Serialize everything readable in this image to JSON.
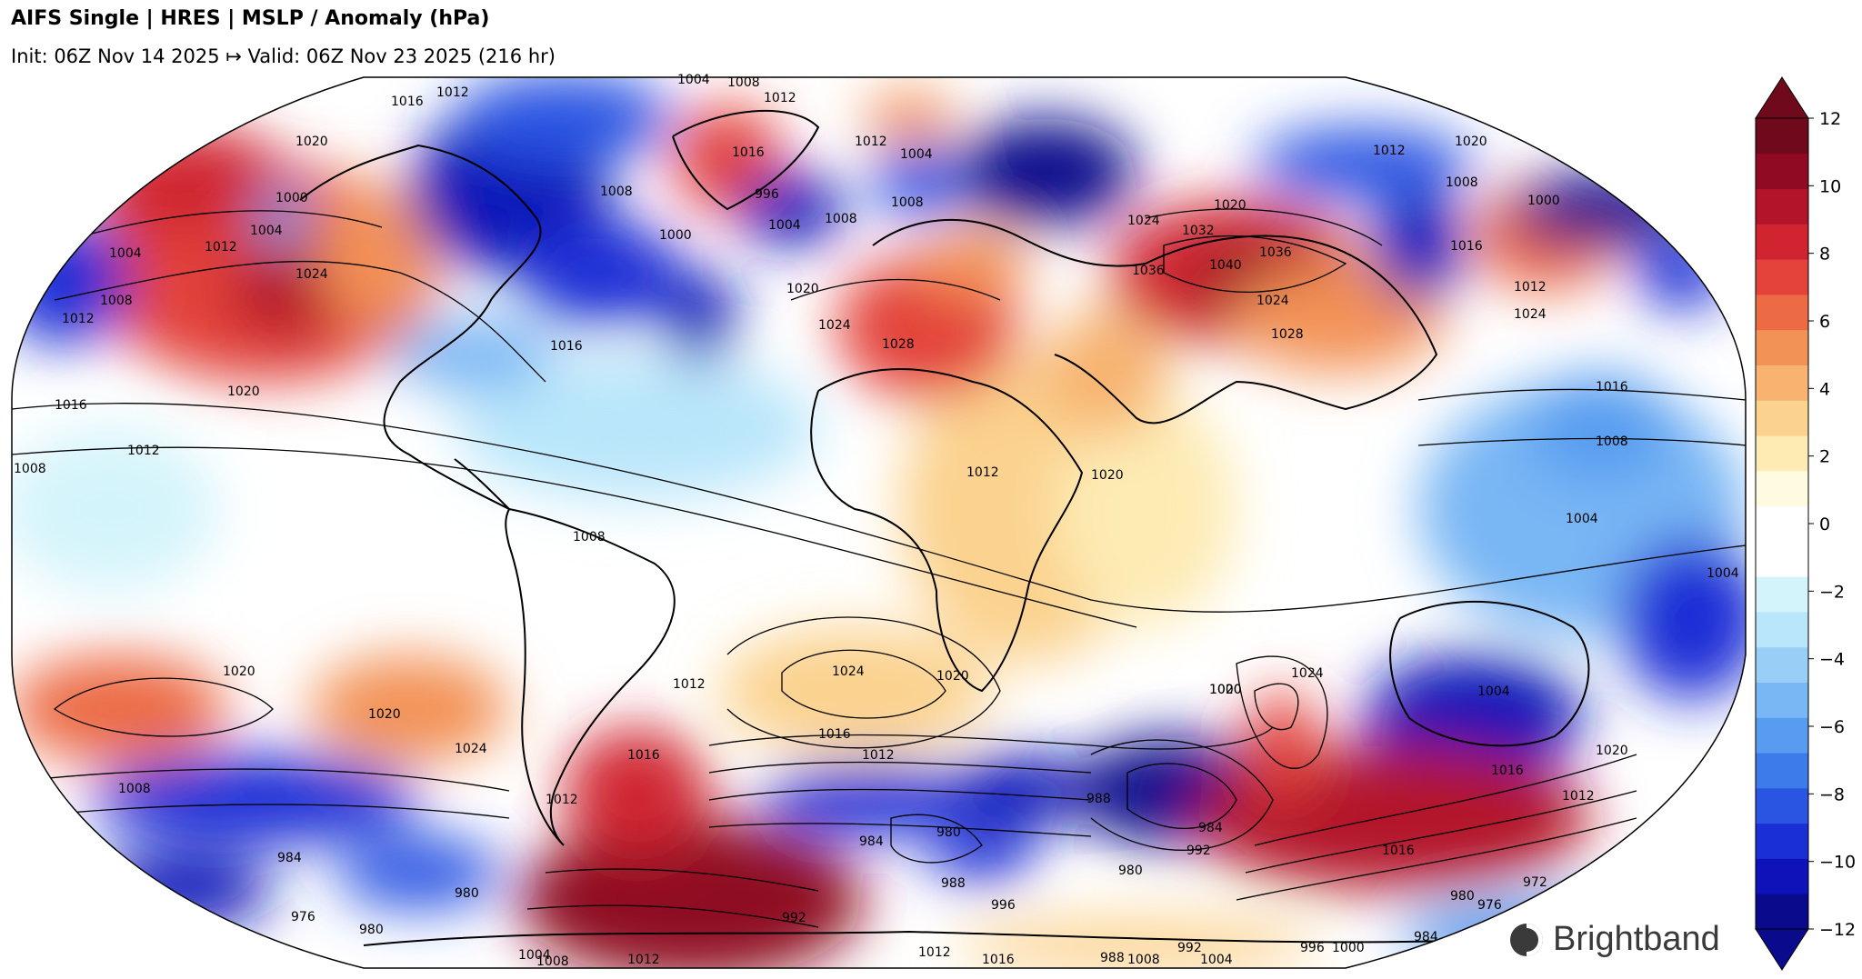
{
  "title": "AIFS Single | HRES | MSLP / Anomaly (hPa)",
  "subtitle": "Init: 06Z Nov 14 2025 ↦ Valid: 06Z Nov 23 2025 (216 hr)",
  "brand": {
    "name": "Brightband"
  },
  "colorbar": {
    "min": -12,
    "max": 12,
    "step": 1,
    "extend": "both",
    "tick_labels": [
      "12",
      "10",
      "8",
      "6",
      "4",
      "2",
      "0",
      "−2",
      "−4",
      "−6",
      "−8",
      "−10",
      "−12"
    ],
    "ticks": [
      12,
      10,
      8,
      6,
      4,
      2,
      0,
      -2,
      -4,
      -6,
      -8,
      -10,
      -12
    ],
    "colors": [
      "#0a0a8c",
      "#0f12b8",
      "#1a2fd6",
      "#2a55e3",
      "#3d7aea",
      "#579cf0",
      "#78b6f4",
      "#99cff7",
      "#b9e6fa",
      "#d4f4fb",
      "#ffffff",
      "#ffffff",
      "#fffbe0",
      "#fdebb4",
      "#fbd28e",
      "#f7b36f",
      "#f39256",
      "#ec6b45",
      "#e3433a",
      "#d02531",
      "#b3142a",
      "#8f0a22",
      "#6f0a1c"
    ],
    "under_color": "#0a0a8c",
    "over_color": "#6f0a1c"
  },
  "map_data": {
    "projection": "Robinson",
    "field": "MSLP anomaly (hPa)",
    "contour_labels": [
      {
        "text": "1004",
        "role": "arctic"
      },
      {
        "text": "1008",
        "role": "arctic"
      },
      {
        "text": "1012",
        "role": "arctic"
      },
      {
        "text": "1012",
        "role": "greenland"
      },
      {
        "text": "1016",
        "role": "alaska"
      },
      {
        "text": "1020",
        "role": "gulf-of-alaska"
      },
      {
        "text": "1000",
        "role": "gulf-of-alaska-low"
      },
      {
        "text": "1004",
        "role": "gulf-of-alaska-low"
      },
      {
        "text": "1012",
        "role": "ne-pacific"
      },
      {
        "text": "1024",
        "role": "ne-pacific-high"
      },
      {
        "text": "1004",
        "role": "nw-pacific"
      },
      {
        "text": "1008",
        "role": "nw-pacific"
      },
      {
        "text": "1012",
        "role": "nw-pacific"
      },
      {
        "text": "1016",
        "role": "e-pacific"
      },
      {
        "text": "1020",
        "role": "e-pacific"
      },
      {
        "text": "1012",
        "role": "tropical-pacific"
      },
      {
        "text": "1008",
        "role": "w-edge"
      },
      {
        "text": "1000",
        "role": "labrador"
      },
      {
        "text": "1008",
        "role": "hudson"
      },
      {
        "text": "1016",
        "role": "greenland"
      },
      {
        "text": "1012",
        "role": "greenland"
      },
      {
        "text": "996",
        "role": "iceland-low"
      },
      {
        "text": "1004",
        "role": "iceland-low"
      },
      {
        "text": "1004",
        "role": "norway"
      },
      {
        "text": "1008",
        "role": "north-atlantic"
      },
      {
        "text": "1008",
        "role": "north-sea"
      },
      {
        "text": "1016",
        "role": "atlantic"
      },
      {
        "text": "1020",
        "role": "azores"
      },
      {
        "text": "1024",
        "role": "iberia"
      },
      {
        "text": "1028",
        "role": "sahara"
      },
      {
        "text": "1024",
        "role": "russia"
      },
      {
        "text": "1032",
        "role": "siberia"
      },
      {
        "text": "1036",
        "role": "siberia"
      },
      {
        "text": "1040",
        "role": "mongolia"
      },
      {
        "text": "1036",
        "role": "mongolia"
      },
      {
        "text": "1024",
        "role": "tibet"
      },
      {
        "text": "1028",
        "role": "tibet"
      },
      {
        "text": "1020",
        "role": "far-east"
      },
      {
        "text": "1016",
        "role": "far-east"
      },
      {
        "text": "1012",
        "role": "kamchatka"
      },
      {
        "text": "1008",
        "role": "bering"
      },
      {
        "text": "1000",
        "role": "bering"
      },
      {
        "text": "1012",
        "role": "japan"
      },
      {
        "text": "1020",
        "role": "japan"
      },
      {
        "text": "1024",
        "role": "japan"
      },
      {
        "text": "1016",
        "role": "nw-pacific-east"
      },
      {
        "text": "1008",
        "role": "philippine-sea"
      },
      {
        "text": "1004",
        "role": "indonesia"
      },
      {
        "text": "1004",
        "role": "sw-pacific"
      },
      {
        "text": "1008",
        "role": "amazon"
      },
      {
        "text": "1012",
        "role": "central-africa"
      },
      {
        "text": "1020",
        "role": "horn-of-africa"
      },
      {
        "text": "1020",
        "role": "se-pacific"
      },
      {
        "text": "1020",
        "role": "s-pacific"
      },
      {
        "text": "1024",
        "role": "s-pacific"
      },
      {
        "text": "1012",
        "role": "s-atlantic"
      },
      {
        "text": "1016",
        "role": "argentina"
      },
      {
        "text": "1024",
        "role": "s-atlantic-high"
      },
      {
        "text": "1020",
        "role": "namibia"
      },
      {
        "text": "1016",
        "role": "s-atlantic"
      },
      {
        "text": "1012",
        "role": "s-atlantic"
      },
      {
        "text": "1020",
        "role": "s-indian"
      },
      {
        "text": "1024",
        "role": "s-indian-high"
      },
      {
        "text": "1016",
        "role": "s-indian"
      },
      {
        "text": "1016",
        "role": "tasman"
      },
      {
        "text": "1020",
        "role": "tasman"
      },
      {
        "text": "1012",
        "role": "tasman"
      },
      {
        "text": "1004",
        "role": "australia"
      },
      {
        "text": "1008",
        "role": "s-pacific-west"
      },
      {
        "text": "1012",
        "role": "drake"
      },
      {
        "text": "984",
        "role": "s-pacific-low"
      },
      {
        "text": "980",
        "role": "s-pacific-low"
      },
      {
        "text": "976",
        "role": "amundsen"
      },
      {
        "text": "980",
        "role": "amundsen"
      },
      {
        "text": "984",
        "role": "s-atlantic-low"
      },
      {
        "text": "980",
        "role": "s-atlantic-low"
      },
      {
        "text": "988",
        "role": "southern-ocean"
      },
      {
        "text": "996",
        "role": "southern-ocean"
      },
      {
        "text": "992",
        "role": "southern-ocean"
      },
      {
        "text": "988",
        "role": "s-indian-low"
      },
      {
        "text": "984",
        "role": "s-indian-low"
      },
      {
        "text": "980",
        "role": "s-indian-low"
      },
      {
        "text": "992",
        "role": "s-indian-low"
      },
      {
        "text": "1000",
        "role": "s-indian"
      },
      {
        "text": "980",
        "role": "ross-sea"
      },
      {
        "text": "976",
        "role": "ross-sea"
      },
      {
        "text": "972",
        "role": "ross-sea"
      },
      {
        "text": "984",
        "role": "ross-sea"
      },
      {
        "text": "992",
        "role": "antarctica"
      },
      {
        "text": "996",
        "role": "antarctica"
      },
      {
        "text": "1004",
        "role": "antarctica"
      },
      {
        "text": "1000",
        "role": "antarctica"
      },
      {
        "text": "1008",
        "role": "antarctica"
      },
      {
        "text": "1012",
        "role": "antarctica"
      },
      {
        "text": "1016",
        "role": "antarctica"
      },
      {
        "text": "988",
        "role": "antarctica"
      },
      {
        "text": "1004",
        "role": "antarctica"
      },
      {
        "text": "1008",
        "role": "antarctica"
      },
      {
        "text": "1012",
        "role": "antarctica"
      }
    ]
  }
}
